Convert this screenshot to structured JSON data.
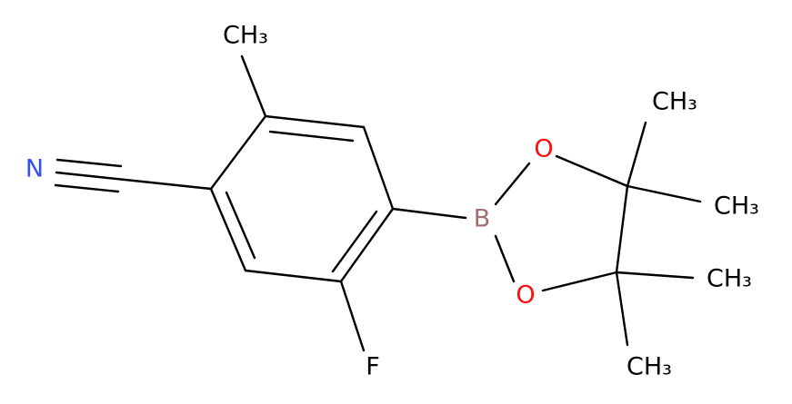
{
  "atoms": [
    {
      "label": "CH₃"
    },
    {
      "label": "N"
    },
    {
      "label": "F"
    },
    {
      "label": "B"
    },
    {
      "label": "O"
    },
    {
      "label": "O"
    },
    {
      "label": "CH₃"
    },
    {
      "label": "CH₃"
    },
    {
      "label": "CH₃"
    },
    {
      "label": "CH₃"
    }
  ]
}
